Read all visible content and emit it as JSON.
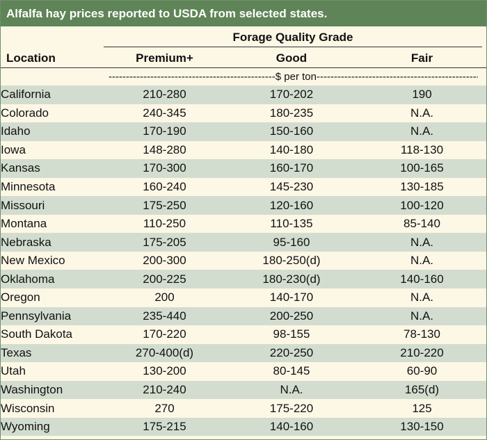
{
  "title": "Alfalfa hay prices reported to USDA from selected states.",
  "group_header": "Forage Quality Grade",
  "location_header": "Location",
  "grade_headers": [
    "Premium+",
    "Good",
    "Fair"
  ],
  "unit_line": "------------------------------------------------$ per ton-----------------------------------------------",
  "rows": [
    {
      "location": "California",
      "premium": "210-280",
      "good": "170-202",
      "fair": "190"
    },
    {
      "location": "Colorado",
      "premium": "240-345",
      "good": "180-235",
      "fair": "N.A."
    },
    {
      "location": "Idaho",
      "premium": "170-190",
      "good": "150-160",
      "fair": "N.A."
    },
    {
      "location": "Iowa",
      "premium": "148-280",
      "good": "140-180",
      "fair": "118-130"
    },
    {
      "location": "Kansas",
      "premium": "170-300",
      "good": "160-170",
      "fair": "100-165"
    },
    {
      "location": "Minnesota",
      "premium": "160-240",
      "good": "145-230",
      "fair": "130-185"
    },
    {
      "location": "Missouri",
      "premium": "175-250",
      "good": "120-160",
      "fair": "100-120"
    },
    {
      "location": "Montana",
      "premium": "110-250",
      "good": "110-135",
      "fair": "85-140"
    },
    {
      "location": "Nebraska",
      "premium": "175-205",
      "good": "95-160",
      "fair": "N.A."
    },
    {
      "location": "New Mexico",
      "premium": "200-300",
      "good": "180-250(d)",
      "fair": "N.A."
    },
    {
      "location": "Oklahoma",
      "premium": "200-225",
      "good": "180-230(d)",
      "fair": "140-160"
    },
    {
      "location": "Oregon",
      "premium": "200",
      "good": "140-170",
      "fair": "N.A."
    },
    {
      "location": "Pennsylvania",
      "premium": "235-440",
      "good": "200-250",
      "fair": "N.A."
    },
    {
      "location": "South Dakota",
      "premium": "170-220",
      "good": "98-155",
      "fair": "78-130"
    },
    {
      "location": "Texas",
      "premium": "270-400(d)",
      "good": "220-250",
      "fair": "210-220"
    },
    {
      "location": "Utah",
      "premium": "130-200",
      "good": "80-145",
      "fair": "60-90"
    },
    {
      "location": "Washington",
      "premium": "210-240",
      "good": "N.A.",
      "fair": "165(d)"
    },
    {
      "location": "Wisconsin",
      "premium": "270",
      "good": "175-220",
      "fair": "125"
    },
    {
      "location": "Wyoming",
      "premium": "175-215",
      "good": "140-160",
      "fair": "130-150"
    }
  ],
  "colors": {
    "title_bar": "#5f8457",
    "row_band": "#d3ddcf",
    "row_plain": "#fdf7e6"
  }
}
